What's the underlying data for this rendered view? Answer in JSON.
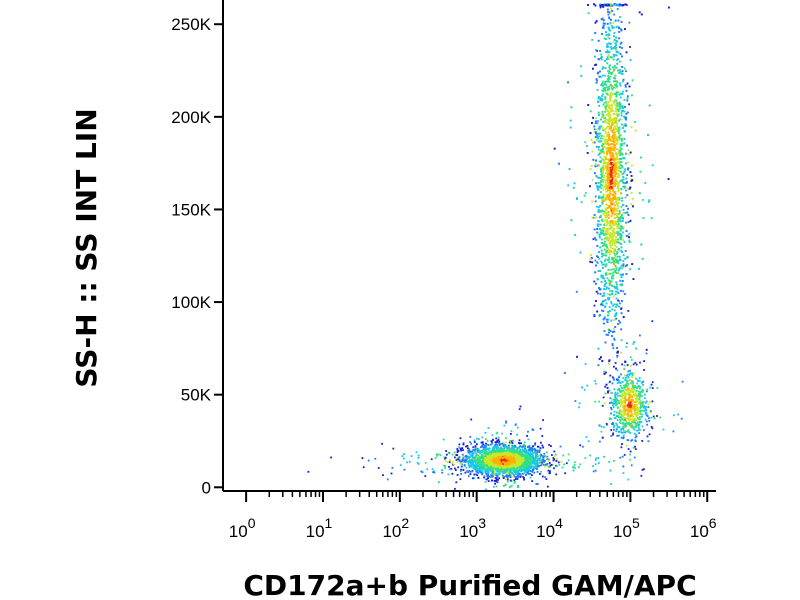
{
  "chart_data": {
    "type": "scatter",
    "style": "flow-cytometry density dot plot",
    "title": "",
    "xlabel": "CD172a+b Purified GAM/APC",
    "ylabel": "SS-H :: SS INT LIN",
    "x_scale": "log",
    "y_scale": "linear",
    "xlim": [
      0.5,
      1300000
    ],
    "ylim": [
      -2000,
      262000
    ],
    "x_ticks": [
      {
        "value": 1,
        "base": "10",
        "exp": "0"
      },
      {
        "value": 10,
        "base": "10",
        "exp": "1"
      },
      {
        "value": 100,
        "base": "10",
        "exp": "2"
      },
      {
        "value": 1000,
        "base": "10",
        "exp": "3"
      },
      {
        "value": 10000,
        "base": "10",
        "exp": "4"
      },
      {
        "value": 100000,
        "base": "10",
        "exp": "5"
      },
      {
        "value": 1000000,
        "base": "10",
        "exp": "6"
      }
    ],
    "y_ticks": [
      {
        "value": 0,
        "label": "0"
      },
      {
        "value": 50000,
        "label": "50K"
      },
      {
        "value": 100000,
        "label": "100K"
      },
      {
        "value": 150000,
        "label": "150K"
      },
      {
        "value": 200000,
        "label": "200K"
      },
      {
        "value": 250000,
        "label": "250K"
      }
    ],
    "populations": [
      {
        "center_x": 2200,
        "center_y": 15000,
        "log_spread_x": 0.25,
        "spread_y": 4000,
        "count": 2600
      },
      {
        "center_x": 55000,
        "center_y": 170000,
        "log_spread_x": 0.1,
        "spread_y": 42000,
        "count": 3400
      },
      {
        "center_x": 95000,
        "center_y": 45000,
        "log_spread_x": 0.12,
        "spread_y": 9000,
        "count": 700
      }
    ],
    "density_colors": [
      "#1a1adb",
      "#1e7bff",
      "#17c7e8",
      "#2fe08a",
      "#c8e82a",
      "#ffb000",
      "#f0241a"
    ],
    "grid": false,
    "legend": "none"
  }
}
